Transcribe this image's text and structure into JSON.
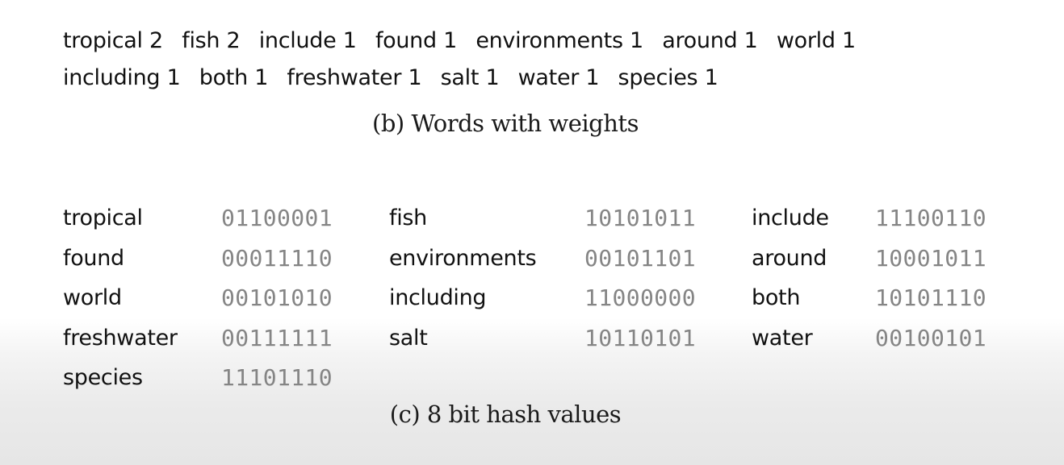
{
  "weights": {
    "line1": [
      {
        "word": "tropical",
        "weight": "2"
      },
      {
        "word": "fish",
        "weight": "2"
      },
      {
        "word": "include",
        "weight": "1"
      },
      {
        "word": "found",
        "weight": "1"
      },
      {
        "word": "environments",
        "weight": "1"
      },
      {
        "word": "around",
        "weight": "1"
      },
      {
        "word": "world",
        "weight": "1"
      }
    ],
    "line2": [
      {
        "word": "including",
        "weight": "1"
      },
      {
        "word": "both",
        "weight": "1"
      },
      {
        "word": "freshwater",
        "weight": "1"
      },
      {
        "word": "salt",
        "weight": "1"
      },
      {
        "word": "water",
        "weight": "1"
      },
      {
        "word": "species",
        "weight": "1"
      }
    ],
    "caption": "(b) Words with weights"
  },
  "hashes": {
    "rows": [
      [
        {
          "word": "tropical",
          "hash": "01100001"
        },
        {
          "word": "fish",
          "hash": "10101011"
        },
        {
          "word": "include",
          "hash": "11100110"
        }
      ],
      [
        {
          "word": "found",
          "hash": "00011110"
        },
        {
          "word": "environments",
          "hash": "00101101"
        },
        {
          "word": "around",
          "hash": "10001011"
        }
      ],
      [
        {
          "word": "world",
          "hash": "00101010"
        },
        {
          "word": "including",
          "hash": "11000000"
        },
        {
          "word": "both",
          "hash": "10101110"
        }
      ],
      [
        {
          "word": "freshwater",
          "hash": "00111111"
        },
        {
          "word": "salt",
          "hash": "10110101"
        },
        {
          "word": "water",
          "hash": "00100101"
        }
      ],
      [
        {
          "word": "species",
          "hash": "11101110"
        }
      ]
    ],
    "caption": "(c) 8 bit hash values"
  }
}
